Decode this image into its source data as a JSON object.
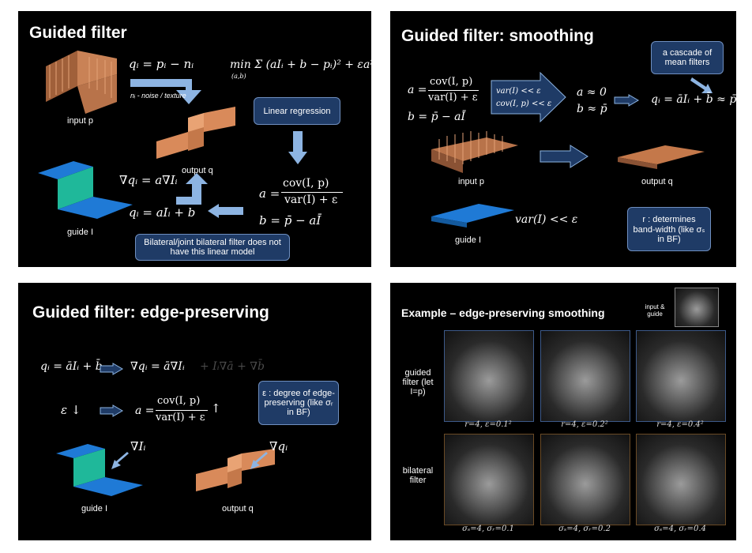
{
  "slides": {
    "s1": {
      "title": "Guided filter",
      "eq_q": "qᵢ = pᵢ − nᵢ",
      "noise_label": "nᵢ - noise / texture",
      "input_label": "input p",
      "output_label": "output q",
      "guide_label": "guide I",
      "min_eq": "min Σ (aIᵢ + b − pᵢ)² + εa²",
      "min_sub": "(a,b)",
      "min_idx": "i",
      "linear_regression": "Linear regression",
      "grad_eq": "∇qᵢ = a∇Iᵢ",
      "q_eq": "qᵢ = aIᵢ + b",
      "a_eq_lhs": "a =",
      "a_eq_num": "cov(I, p)",
      "a_eq_den": "var(I) + ε",
      "b_eq": "b = p̄ − aĪ",
      "callout": "Bilateral/joint bilateral filter does not have this linear model"
    },
    "s2": {
      "title": "Guided filter: smoothing",
      "cascade": "a cascade of mean filters",
      "a_eq_lhs": "a =",
      "a_eq_num": "cov(I, p)",
      "a_eq_den": "var(I) + ε",
      "b_eq": "b = p̄ − aĪ",
      "cond1": "var(I) << ε",
      "cond2": "cov(I, p) << ε",
      "a_approx": "a ≈ 0",
      "b_approx": "b ≈ p̄",
      "q_approx": "qᵢ = āIᵢ + b̄ ≈ p̄̄",
      "input_label": "input p",
      "output_label": "output q",
      "guide_label": "guide I",
      "var_cond": "var(I) << ε",
      "r_box": "r : determines band-width (like σₛ in BF)"
    },
    "s3": {
      "title": "Guided filter: edge-preserving",
      "eq1_lhs": "qᵢ = āIᵢ + b̄",
      "eq1_rhs": "∇qᵢ = ā∇Iᵢ",
      "eq1_faded": "+ Iᵢ∇ā + ∇b̄",
      "eps_down": "ε ↓",
      "a_eq_lhs": "a =",
      "a_eq_num": "cov(I, p)",
      "a_eq_den": "var(I) + ε",
      "up_arrow": "↑",
      "eps_box": "ε : degree of edge-preserving (like σᵣ in BF)",
      "grad_I": "∇Iᵢ",
      "grad_q": "∇qᵢ",
      "guide_label": "guide I",
      "output_label": "output q"
    },
    "s4": {
      "title": "Example – edge-preserving smoothing",
      "input_guide": "input & guide",
      "row1_label": "guided filter (let I=p)",
      "row2_label": "bilateral filter",
      "gf_caps": [
        "r=4, ε=0.1²",
        "r=4, ε=0.2²",
        "r=4, ε=0.4²"
      ],
      "bf_caps": [
        "σₛ=4, σᵣ=0.1",
        "σₛ=4, σᵣ=0.2",
        "σₛ=4, σᵣ=0.4"
      ]
    }
  },
  "colors": {
    "background": "#000000",
    "box_fill": "#1f3b66",
    "arrow_blue": "#8db4e2",
    "guide_blue": "#1f7ad6",
    "guide_teal": "#1fb89a",
    "surface_orange": "#d98a5a"
  }
}
